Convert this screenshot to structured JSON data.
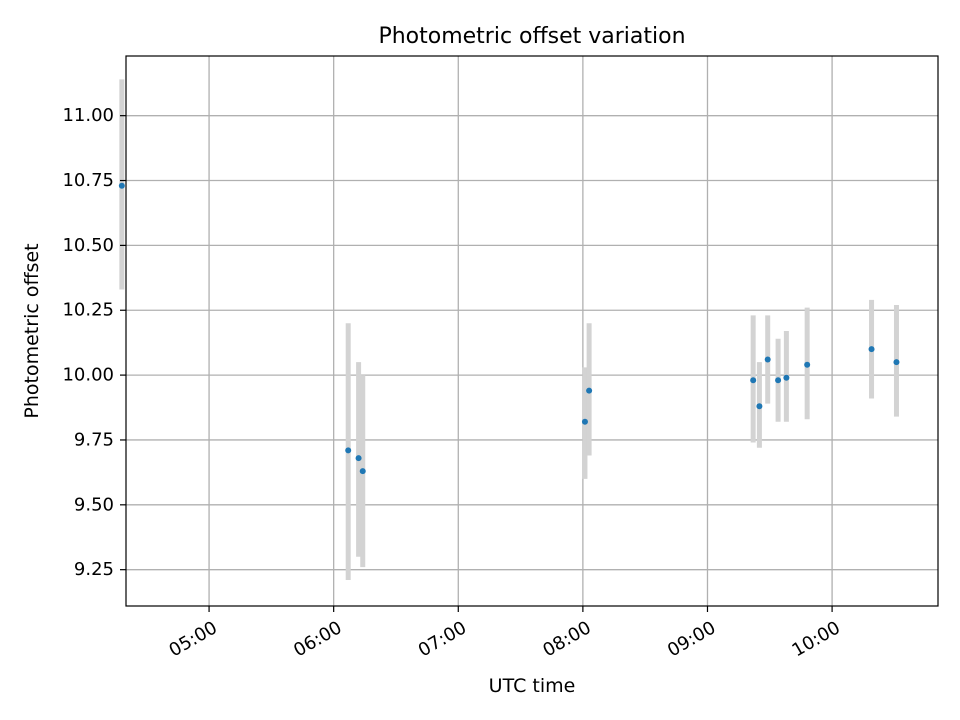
{
  "chart_data": {
    "type": "scatter",
    "title": "Photometric offset variation",
    "xlabel": "UTC time",
    "ylabel": "Photometric offset",
    "x_unit": "UTC time of day (HH:MM)",
    "xlim": [
      "04:20",
      "10:51"
    ],
    "ylim": [
      9.11,
      11.23
    ],
    "x_ticks": [
      "05:00",
      "06:00",
      "07:00",
      "08:00",
      "09:00",
      "10:00"
    ],
    "y_ticks": [
      9.25,
      9.5,
      9.75,
      10.0,
      10.25,
      10.5,
      10.75,
      11.0
    ],
    "y_tick_labels": [
      "9.25",
      "9.50",
      "9.75",
      "10.00",
      "10.25",
      "10.50",
      "10.75",
      "11.00"
    ],
    "grid": true,
    "x_tick_rotation_deg": 30,
    "marker_color": "#1f77b4",
    "errorbar_color": "#d3d3d3",
    "points": [
      {
        "x": "04:18",
        "y": 10.73,
        "yerr_low": 10.33,
        "yerr_high": 11.14
      },
      {
        "x": "06:07",
        "y": 9.71,
        "yerr_low": 9.21,
        "yerr_high": 10.2
      },
      {
        "x": "06:12",
        "y": 9.68,
        "yerr_low": 9.3,
        "yerr_high": 10.05
      },
      {
        "x": "06:14",
        "y": 9.63,
        "yerr_low": 9.26,
        "yerr_high": 10.0
      },
      {
        "x": "08:01",
        "y": 9.82,
        "yerr_low": 9.6,
        "yerr_high": 10.03
      },
      {
        "x": "08:03",
        "y": 9.94,
        "yerr_low": 9.69,
        "yerr_high": 10.2
      },
      {
        "x": "09:22",
        "y": 9.98,
        "yerr_low": 9.74,
        "yerr_high": 10.23
      },
      {
        "x": "09:25",
        "y": 9.88,
        "yerr_low": 9.72,
        "yerr_high": 10.05
      },
      {
        "x": "09:29",
        "y": 10.06,
        "yerr_low": 9.89,
        "yerr_high": 10.23
      },
      {
        "x": "09:34",
        "y": 9.98,
        "yerr_low": 9.82,
        "yerr_high": 10.14
      },
      {
        "x": "09:38",
        "y": 9.99,
        "yerr_low": 9.82,
        "yerr_high": 10.17
      },
      {
        "x": "09:48",
        "y": 10.04,
        "yerr_low": 9.83,
        "yerr_high": 10.26
      },
      {
        "x": "10:19",
        "y": 10.1,
        "yerr_low": 9.91,
        "yerr_high": 10.29
      },
      {
        "x": "10:31",
        "y": 10.05,
        "yerr_low": 9.84,
        "yerr_high": 10.27
      }
    ]
  }
}
